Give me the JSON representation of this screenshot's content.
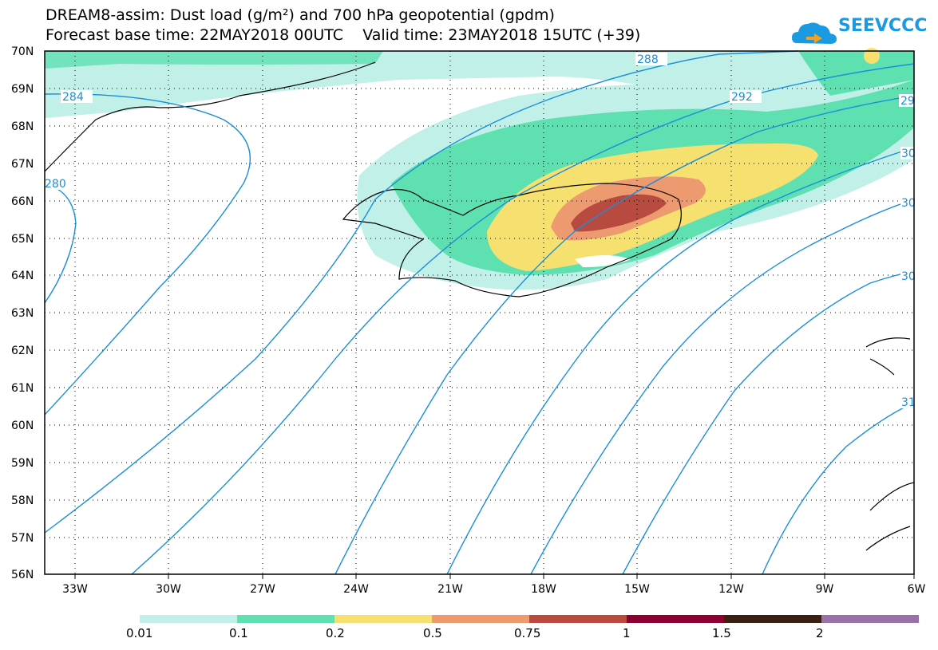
{
  "title": {
    "line1": "DREAM8-assim: Dust load (g/m²) and 700 hPa geopotential (gpdm)",
    "line2": "Forecast base time: 22MAY2018 00UTC    Valid time: 23MAY2018 15UTC (+39)"
  },
  "logo": {
    "text": "SEEVCCC"
  },
  "map": {
    "lat_ticks": [
      "70N",
      "69N",
      "68N",
      "67N",
      "66N",
      "65N",
      "64N",
      "63N",
      "62N",
      "61N",
      "60N",
      "59N",
      "58N",
      "57N",
      "56N"
    ],
    "lon_ticks": [
      "33W",
      "30W",
      "27W",
      "24W",
      "21W",
      "18W",
      "15W",
      "12W",
      "9W",
      "6W"
    ],
    "contour_labels": [
      "284",
      "288",
      "292",
      "29",
      "280",
      "30",
      "30",
      "30",
      "31"
    ],
    "contour_color": "#1a8fd8"
  },
  "legend": {
    "labels": [
      "0.01",
      "0.1",
      "0.2",
      "0.5",
      "0.75",
      "1",
      "1.5",
      "2"
    ],
    "colors": [
      "#c0f0e8",
      "#5ee0b0",
      "#f6e070",
      "#ee9a70",
      "#b84a40",
      "#8a0030",
      "#3a2010",
      "#9a70a8"
    ]
  }
}
